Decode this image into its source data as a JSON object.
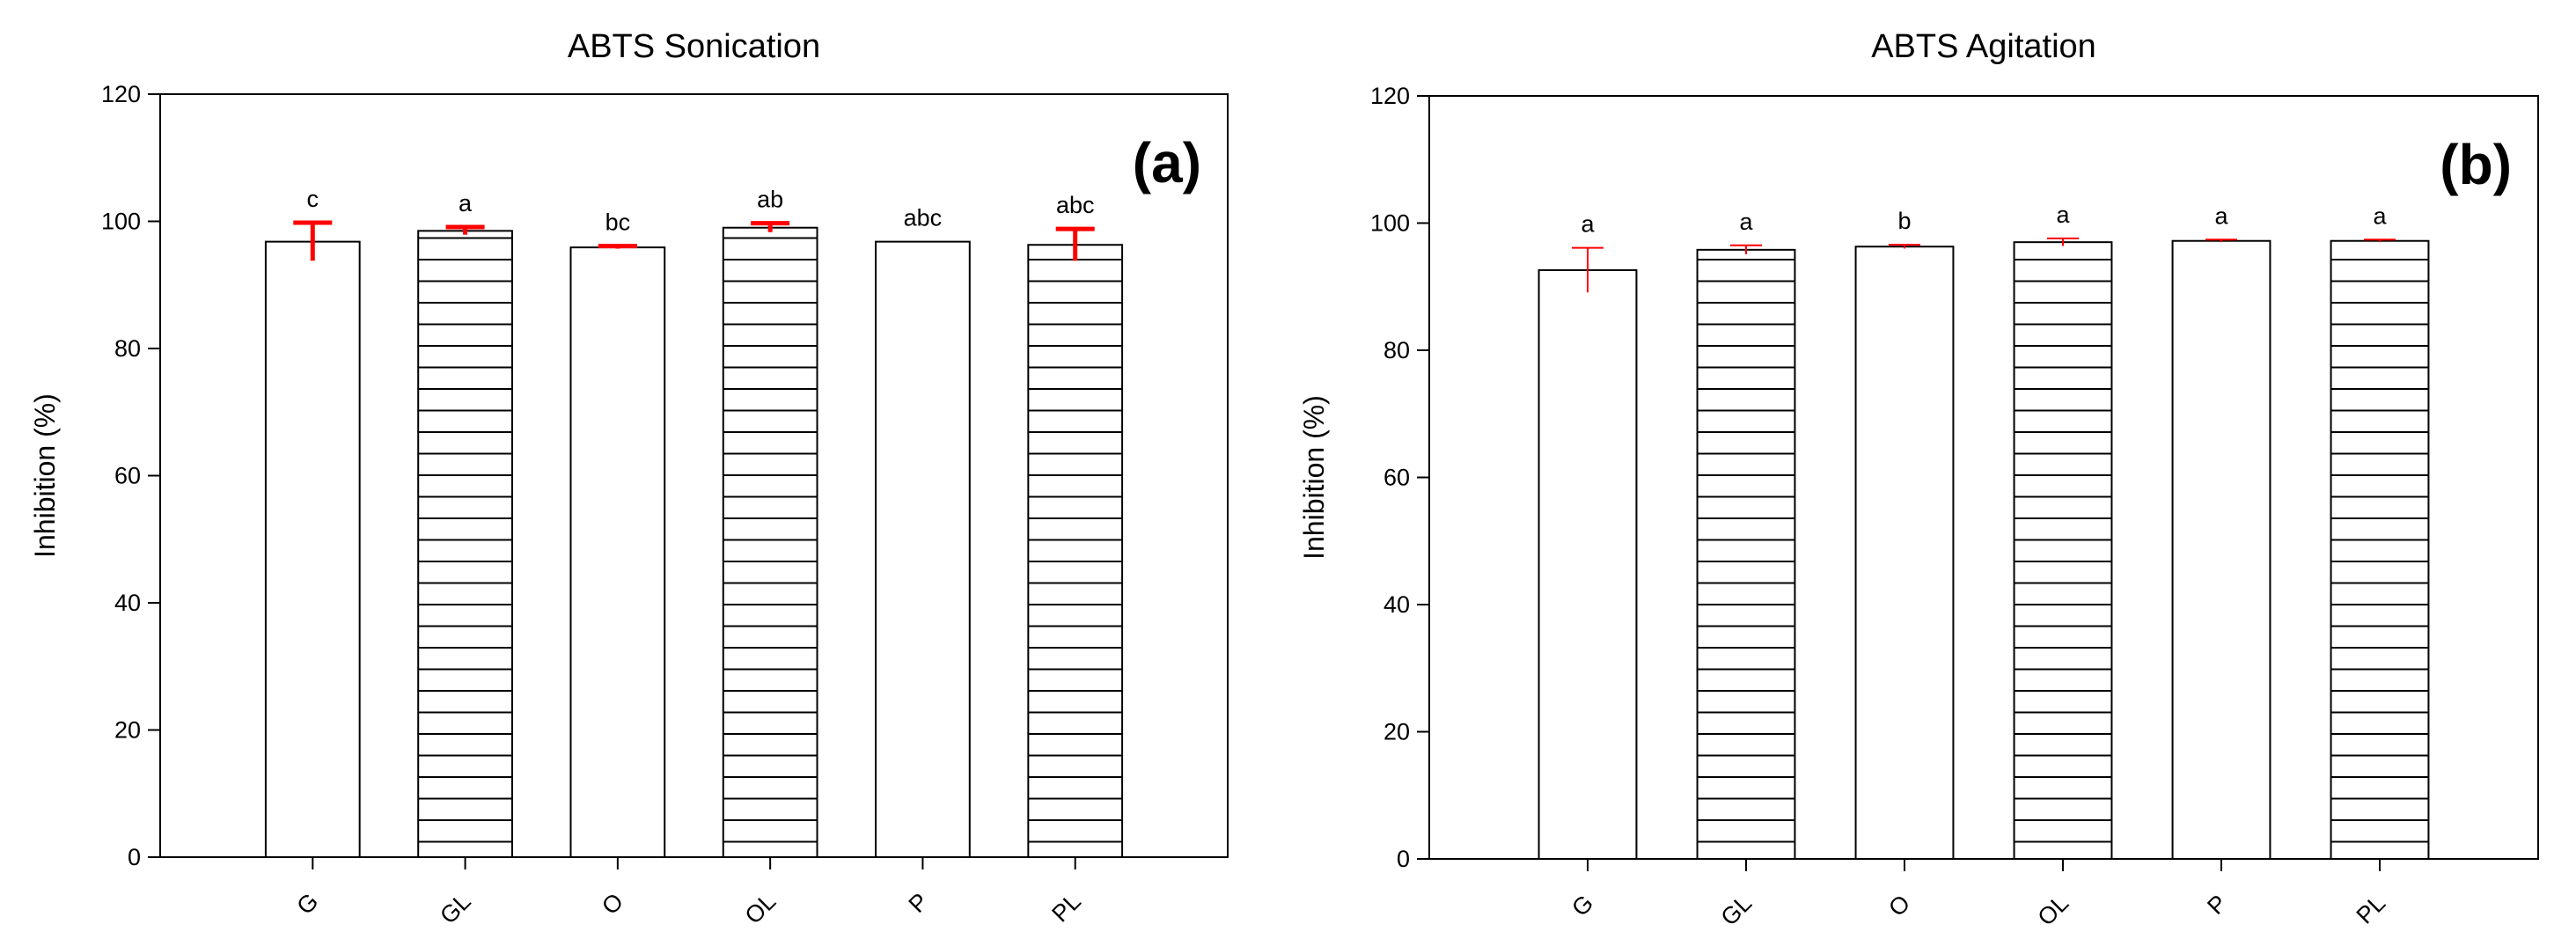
{
  "chart_data": [
    {
      "type": "bar",
      "title": "ABTS Sonication",
      "panel_label": "(a)",
      "xlabel": "",
      "ylabel": "Inhibition (%)",
      "ylim": [
        0,
        120
      ],
      "yticks": [
        0,
        20,
        40,
        60,
        80,
        100,
        120
      ],
      "categories": [
        "G",
        "GL",
        "O",
        "OL",
        "P",
        "PL"
      ],
      "values": [
        96.8,
        98.5,
        95.9,
        99.0,
        96.8,
        96.3
      ],
      "errors": [
        3.0,
        0.6,
        0.2,
        0.7,
        0.0,
        2.5
      ],
      "hatched": [
        false,
        true,
        false,
        true,
        false,
        true
      ],
      "significance": [
        "c",
        "a",
        "bc",
        "ab",
        "abc",
        "abc"
      ],
      "error_color": "#ff0000",
      "grid": false
    },
    {
      "type": "bar",
      "title": "ABTS Agitation",
      "panel_label": "(b)",
      "xlabel": "",
      "ylabel": "Inhibition (%)",
      "ylim": [
        0,
        120
      ],
      "yticks": [
        0,
        20,
        40,
        60,
        80,
        100,
        120
      ],
      "categories": [
        "G",
        "GL",
        "O",
        "OL",
        "P",
        "PL"
      ],
      "values": [
        92.6,
        95.8,
        96.3,
        97.0,
        97.2,
        97.2
      ],
      "errors": [
        3.5,
        0.7,
        0.3,
        0.6,
        0.2,
        0.2
      ],
      "hatched": [
        false,
        true,
        false,
        true,
        false,
        true
      ],
      "significance": [
        "a",
        "a",
        "b",
        "a",
        "a",
        "a"
      ],
      "error_color": "#ff0000",
      "grid": false
    }
  ]
}
